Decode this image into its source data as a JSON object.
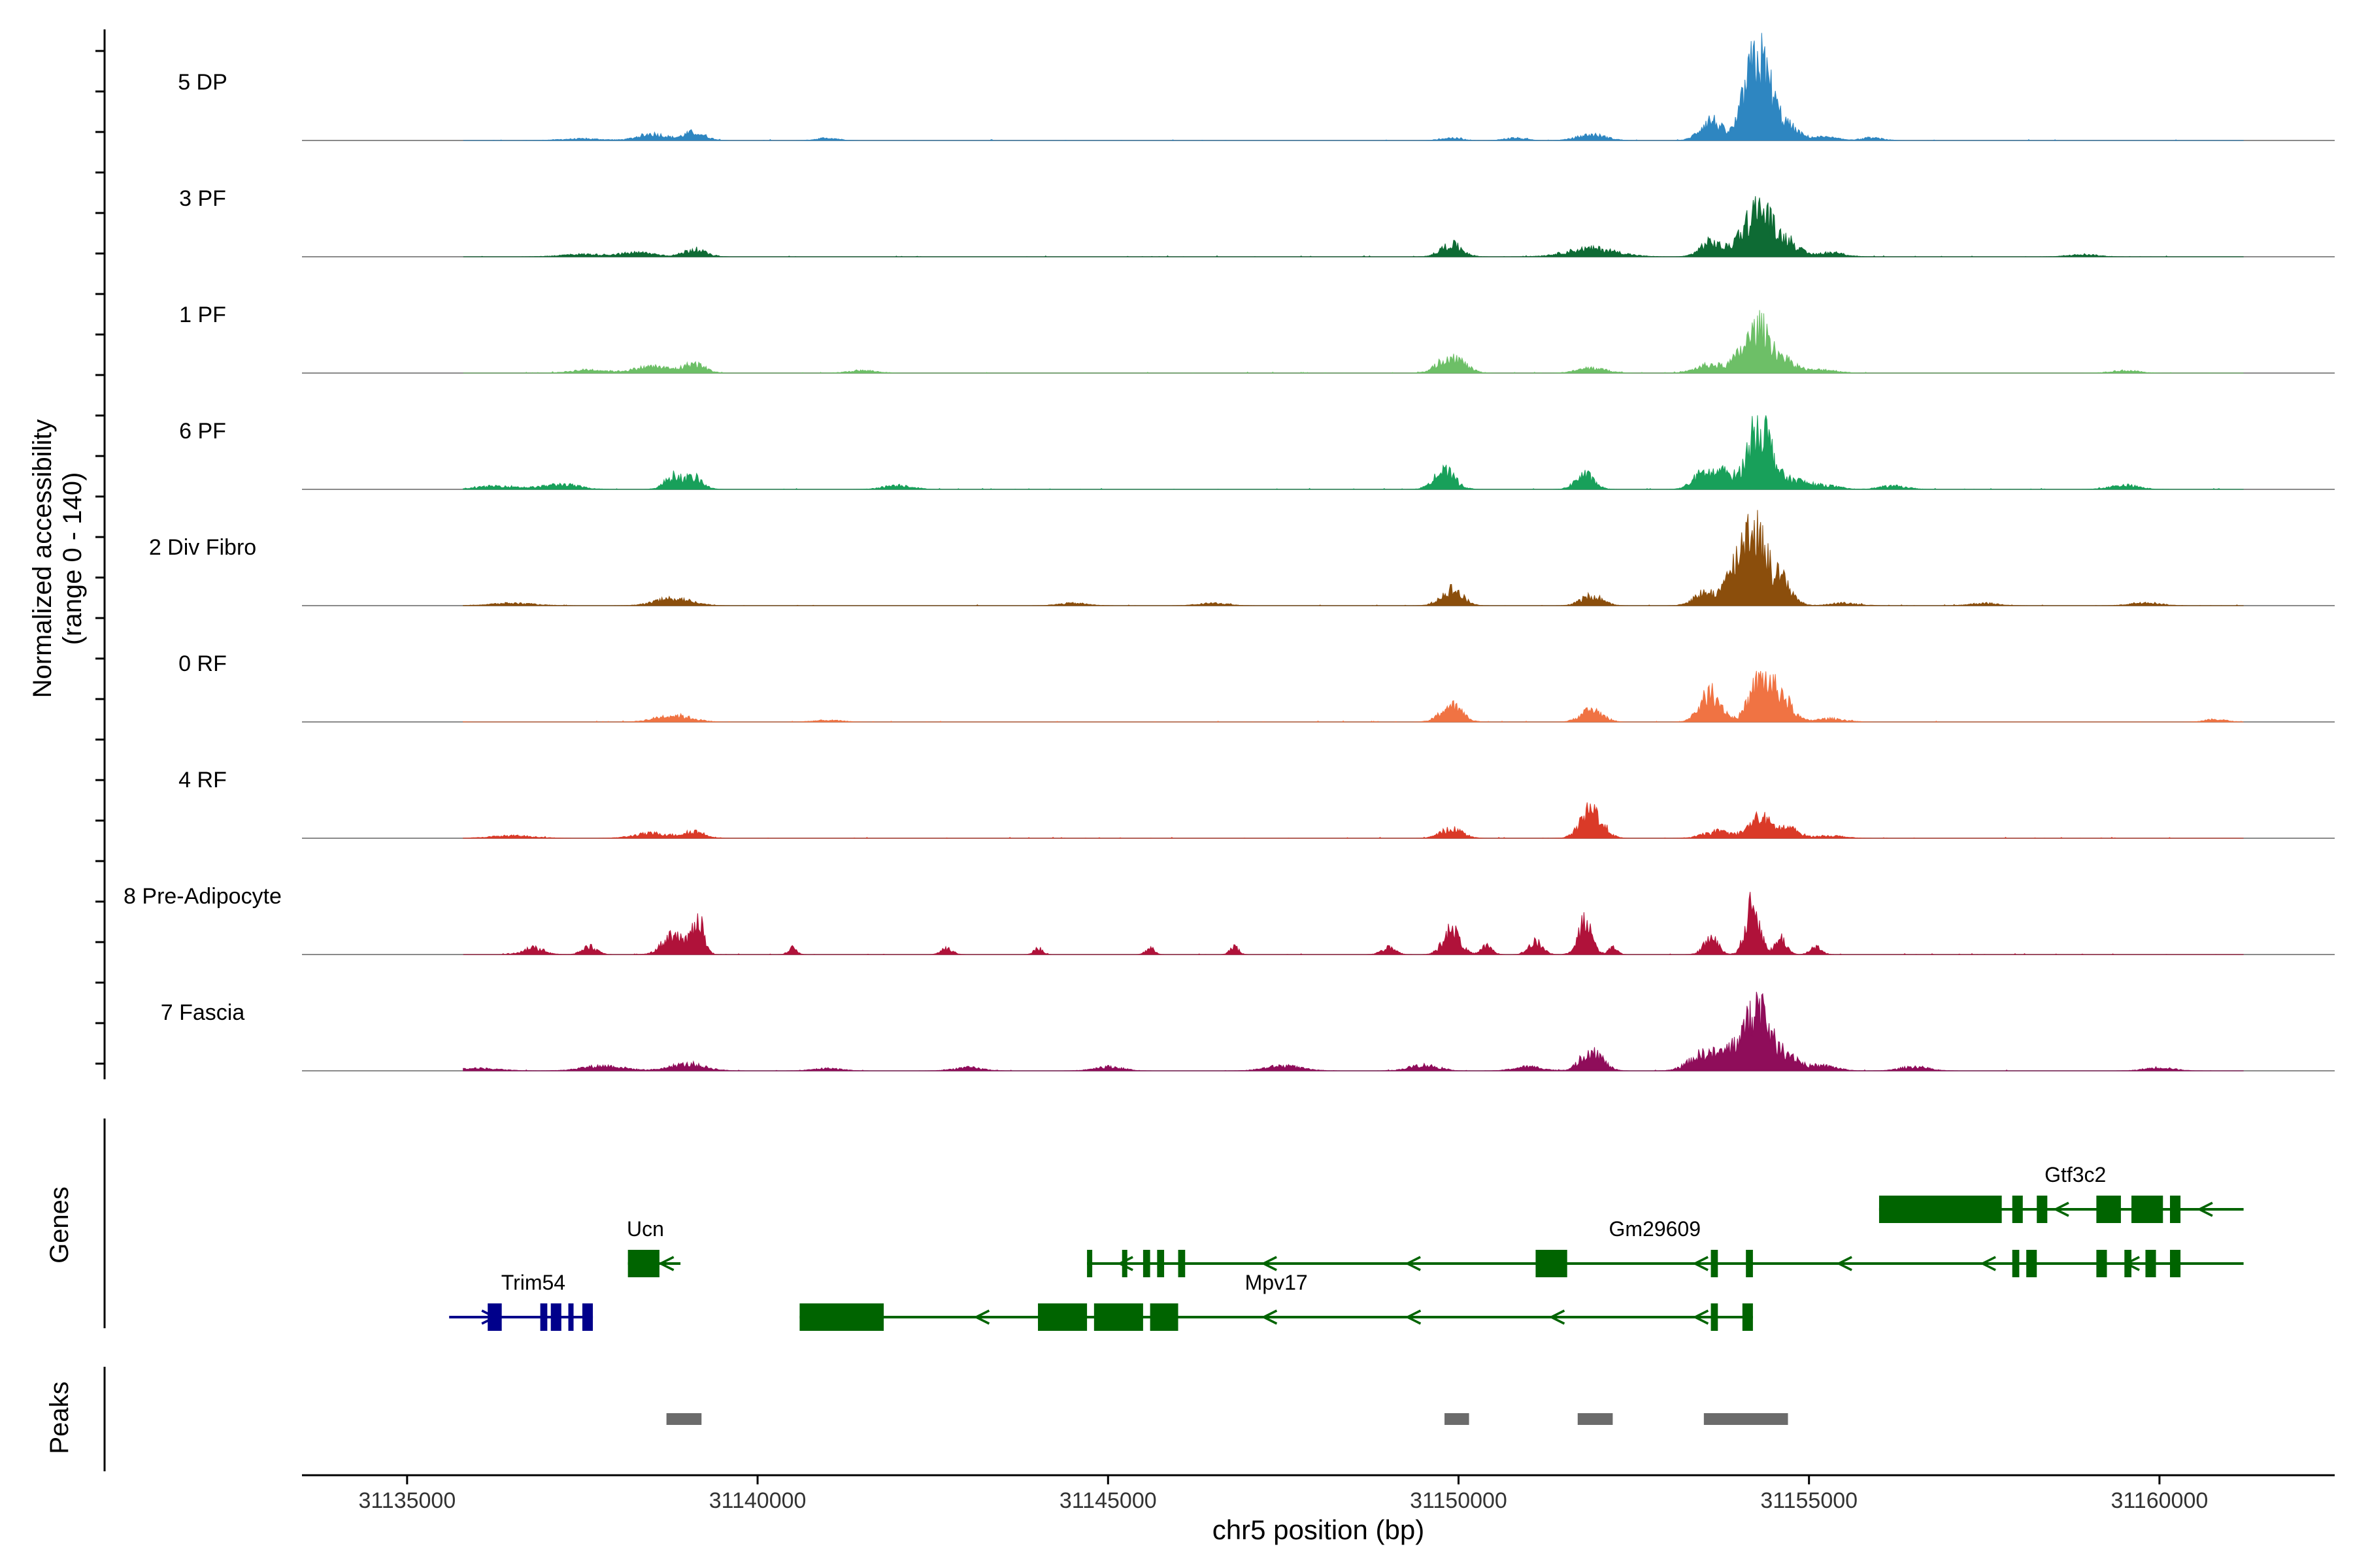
{
  "chart_data": {
    "type": "area",
    "y_axis_label": "Normalized accessibility",
    "y_axis_range_label": "(range 0 - 140)",
    "y_range": [
      0,
      140
    ],
    "x_axis_label": "chr5 position (bp)",
    "x_range": [
      31133500,
      31162500
    ],
    "x_ticks": [
      {
        "value": 31135000,
        "label": "31135000"
      },
      {
        "value": 31140000,
        "label": "31140000"
      },
      {
        "value": 31145000,
        "label": "31145000"
      },
      {
        "value": 31150000,
        "label": "31150000"
      },
      {
        "value": 31155000,
        "label": "31155000"
      },
      {
        "value": 31160000,
        "label": "31160000"
      }
    ],
    "genes_label": "Genes",
    "peaks_label": "Peaks",
    "tracks": [
      {
        "name": "5 DP",
        "color": "#2E86C1",
        "peaks": [
          [
            31137500,
            2,
            300
          ],
          [
            31138500,
            8,
            200
          ],
          [
            31139100,
            10,
            150
          ],
          [
            31141000,
            3,
            150
          ],
          [
            31149900,
            3,
            150
          ],
          [
            31150800,
            3,
            150
          ],
          [
            31151900,
            7,
            200
          ],
          [
            31153600,
            25,
            150
          ],
          [
            31154100,
            20,
            120
          ],
          [
            31154300,
            95,
            170
          ],
          [
            31154700,
            15,
            150
          ],
          [
            31155200,
            4,
            200
          ],
          [
            31155900,
            3,
            150
          ]
        ]
      },
      {
        "name": "3 PF",
        "color": "#0E6B34",
        "peaks": [
          [
            31137500,
            3,
            300
          ],
          [
            31138300,
            5,
            250
          ],
          [
            31139100,
            9,
            150
          ],
          [
            31149900,
            15,
            150
          ],
          [
            31151900,
            10,
            350
          ],
          [
            31153600,
            18,
            150
          ],
          [
            31154000,
            15,
            120
          ],
          [
            31154300,
            60,
            170
          ],
          [
            31154700,
            18,
            150
          ],
          [
            31155300,
            5,
            200
          ],
          [
            31158900,
            3,
            200
          ]
        ]
      },
      {
        "name": "1 PF",
        "color": "#6DBF67",
        "peaks": [
          [
            31137600,
            4,
            250
          ],
          [
            31138500,
            8,
            250
          ],
          [
            31139100,
            11,
            150
          ],
          [
            31141500,
            3,
            200
          ],
          [
            31149900,
            20,
            180
          ],
          [
            31151900,
            6,
            200
          ],
          [
            31153600,
            10,
            200
          ],
          [
            31154000,
            12,
            120
          ],
          [
            31154300,
            55,
            170
          ],
          [
            31154700,
            12,
            150
          ],
          [
            31155200,
            4,
            200
          ],
          [
            31159500,
            3,
            200
          ]
        ]
      },
      {
        "name": "6 PF",
        "color": "#18A05A",
        "peaks": [
          [
            31136300,
            4,
            300
          ],
          [
            31137200,
            6,
            250
          ],
          [
            31138800,
            16,
            120
          ],
          [
            31139100,
            14,
            120
          ],
          [
            31142000,
            5,
            200
          ],
          [
            31149800,
            22,
            150
          ],
          [
            31151800,
            18,
            130
          ],
          [
            31153500,
            20,
            150
          ],
          [
            31153800,
            18,
            120
          ],
          [
            31154300,
            80,
            170
          ],
          [
            31154800,
            10,
            150
          ],
          [
            31155200,
            5,
            200
          ],
          [
            31156200,
            4,
            200
          ],
          [
            31159500,
            5,
            200
          ]
        ]
      },
      {
        "name": "2 Div Fibro",
        "color": "#8B4E0C",
        "peaks": [
          [
            31136500,
            3,
            300
          ],
          [
            31138800,
            9,
            250
          ],
          [
            31144500,
            3,
            200
          ],
          [
            31146500,
            3,
            200
          ],
          [
            31149900,
            20,
            150
          ],
          [
            31151900,
            12,
            150
          ],
          [
            31153500,
            15,
            150
          ],
          [
            31153900,
            25,
            150
          ],
          [
            31154200,
            95,
            170
          ],
          [
            31154600,
            30,
            150
          ],
          [
            31155500,
            3,
            200
          ],
          [
            31157500,
            3,
            200
          ],
          [
            31159800,
            4,
            200
          ]
        ]
      },
      {
        "name": "0 RF",
        "color": "#F07343",
        "peaks": [
          [
            31135500,
            3,
            150
          ],
          [
            31138800,
            8,
            250
          ],
          [
            31141000,
            2,
            200
          ],
          [
            31149900,
            20,
            150
          ],
          [
            31151900,
            15,
            150
          ],
          [
            31153600,
            35,
            150
          ],
          [
            31154300,
            48,
            150
          ],
          [
            31154600,
            30,
            150
          ],
          [
            31155300,
            4,
            200
          ],
          [
            31160800,
            3,
            150
          ]
        ]
      },
      {
        "name": "4 RF",
        "color": "#DA3A28",
        "peaks": [
          [
            31136500,
            3,
            300
          ],
          [
            31138500,
            6,
            250
          ],
          [
            31139100,
            8,
            150
          ],
          [
            31149900,
            12,
            150
          ],
          [
            31151900,
            35,
            150
          ],
          [
            31153700,
            8,
            200
          ],
          [
            31154300,
            25,
            150
          ],
          [
            31154700,
            12,
            150
          ],
          [
            31155300,
            3,
            200
          ]
        ]
      },
      {
        "name": "8 Pre-Adipocyte",
        "color": "#B0123A",
        "peaks": [
          [
            31136800,
            8,
            150
          ],
          [
            31137600,
            10,
            100
          ],
          [
            31138800,
            25,
            150
          ],
          [
            31139150,
            45,
            80
          ],
          [
            31140500,
            8,
            60
          ],
          [
            31142700,
            8,
            80
          ],
          [
            31144000,
            8,
            60
          ],
          [
            31145600,
            8,
            60
          ],
          [
            31146800,
            10,
            60
          ],
          [
            31149000,
            8,
            100
          ],
          [
            31149900,
            30,
            120
          ],
          [
            31150400,
            10,
            80
          ],
          [
            31151100,
            15,
            100
          ],
          [
            31151800,
            40,
            100
          ],
          [
            31152200,
            10,
            60
          ],
          [
            31153600,
            20,
            100
          ],
          [
            31154200,
            60,
            100
          ],
          [
            31154600,
            20,
            80
          ],
          [
            31155100,
            10,
            80
          ]
        ]
      },
      {
        "name": "7 Fascia",
        "color": "#8F0D5A",
        "peaks": [
          [
            31136000,
            3,
            300
          ],
          [
            31137800,
            6,
            300
          ],
          [
            31139000,
            8,
            250
          ],
          [
            31141000,
            3,
            200
          ],
          [
            31143000,
            4,
            200
          ],
          [
            31145000,
            5,
            200
          ],
          [
            31147500,
            6,
            250
          ],
          [
            31149500,
            7,
            200
          ],
          [
            31151000,
            5,
            200
          ],
          [
            31151900,
            25,
            150
          ],
          [
            31153500,
            20,
            200
          ],
          [
            31154000,
            30,
            200
          ],
          [
            31154300,
            70,
            150
          ],
          [
            31154700,
            20,
            150
          ],
          [
            31155200,
            6,
            200
          ],
          [
            31156500,
            5,
            200
          ],
          [
            31160000,
            4,
            200
          ]
        ]
      }
    ],
    "genes": [
      {
        "name": "Trim54",
        "color": "#00008B",
        "row": 3,
        "strand": "+",
        "start": 31135600,
        "end": 31137650,
        "exons": [
          [
            31136150,
            31136350
          ],
          [
            31136900,
            31137000
          ],
          [
            31137050,
            31137200
          ],
          [
            31137300,
            31137350
          ],
          [
            31137500,
            31137650
          ]
        ],
        "label_x": 31136800,
        "label_row": 3
      },
      {
        "name": "Ucn",
        "color": "#006400",
        "row": 2,
        "strand": "-",
        "start": 31138150,
        "end": 31138900,
        "exons": [
          [
            31138150,
            31138600
          ]
        ],
        "label_x": 31138400,
        "label_row": 2
      },
      {
        "name": "Mpv17",
        "color": "#006400",
        "row": 3,
        "strand": "-",
        "start": 31140600,
        "end": 31154200,
        "exons": [
          [
            31140600,
            31141800
          ],
          [
            31144000,
            31144700
          ],
          [
            31144800,
            31145500
          ],
          [
            31145600,
            31146000
          ],
          [
            31153600,
            31153700
          ],
          [
            31154050,
            31154200
          ]
        ],
        "label_x": 31147400,
        "label_row": 3
      },
      {
        "name": "Gm29609",
        "color": "#006400",
        "row": 2,
        "strand": "-",
        "start": 31144700,
        "end": 31161200,
        "exons": [
          [
            31144700,
            31144750
          ],
          [
            31145200,
            31145250
          ],
          [
            31145500,
            31145600
          ],
          [
            31145700,
            31145800
          ],
          [
            31146000,
            31146100
          ],
          [
            31151100,
            31151550
          ],
          [
            31153600,
            31153700
          ],
          [
            31154100,
            31154200
          ],
          [
            31157900,
            31158000
          ],
          [
            31158100,
            31158250
          ],
          [
            31159100,
            31159250
          ],
          [
            31159500,
            31159600
          ],
          [
            31159800,
            31159950
          ],
          [
            31160150,
            31160300
          ]
        ],
        "label_x": 31152800,
        "label_row": 2
      },
      {
        "name": "Gtf3c2",
        "color": "#006400",
        "row": 1,
        "strand": "-",
        "start": 31156000,
        "end": 31161200,
        "exons": [
          [
            31156000,
            31157750
          ],
          [
            31157900,
            31158050
          ],
          [
            31158250,
            31158400
          ],
          [
            31159100,
            31159450
          ],
          [
            31159600,
            31160050
          ],
          [
            31160150,
            31160300
          ]
        ],
        "label_x": 31158800,
        "label_row": 1
      }
    ],
    "peaks_regions": [
      [
        31138700,
        31139200
      ],
      [
        31149800,
        31150150
      ],
      [
        31151700,
        31152200
      ],
      [
        31153500,
        31154700
      ]
    ]
  }
}
